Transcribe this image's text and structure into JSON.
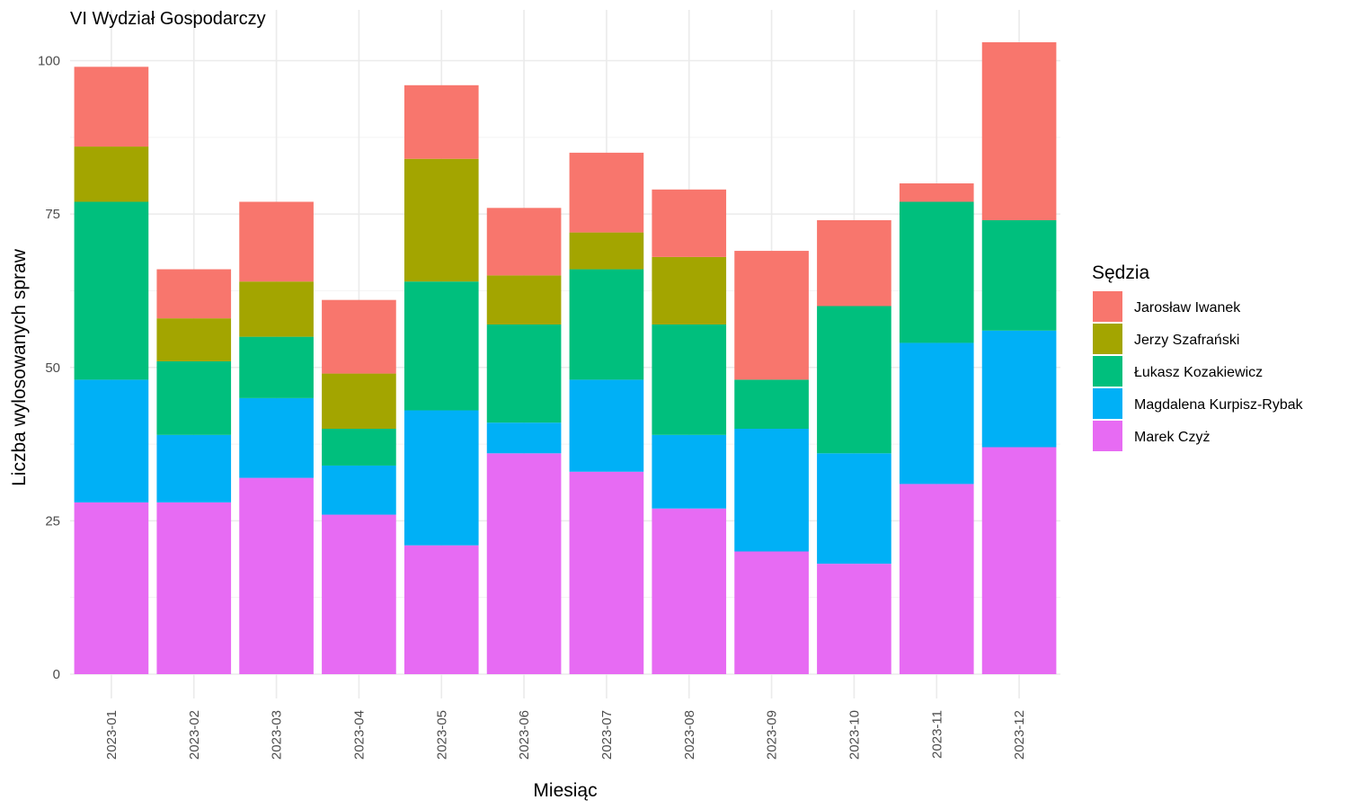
{
  "chart_data": {
    "type": "bar",
    "stacked": true,
    "title": "VI Wydział Gospodarczy",
    "xlabel": "Miesiąc",
    "ylabel": "Liczba wylosowanych spraw",
    "categories": [
      "2023-01",
      "2023-02",
      "2023-03",
      "2023-04",
      "2023-05",
      "2023-06",
      "2023-07",
      "2023-08",
      "2023-09",
      "2023-10",
      "2023-11",
      "2023-12"
    ],
    "ylim": [
      0,
      103
    ],
    "yticks": [
      0,
      25,
      50,
      75,
      100
    ],
    "grid": true,
    "legend": {
      "title": "Sędzia",
      "placement": "right"
    },
    "series": [
      {
        "name": "Marek Czyż",
        "color": "#E76BF3",
        "values": [
          28,
          28,
          32,
          26,
          21,
          36,
          33,
          27,
          20,
          18,
          31,
          37
        ]
      },
      {
        "name": "Magdalena Kurpisz-Rybak",
        "color": "#00B0F6",
        "values": [
          20,
          11,
          13,
          8,
          22,
          5,
          15,
          12,
          20,
          18,
          23,
          19
        ]
      },
      {
        "name": "Łukasz Kozakiewicz",
        "color": "#00BF7D",
        "values": [
          29,
          12,
          10,
          6,
          21,
          16,
          18,
          18,
          8,
          24,
          23,
          18
        ]
      },
      {
        "name": "Jerzy Szafrański",
        "color": "#A3A500",
        "values": [
          9,
          7,
          9,
          9,
          20,
          8,
          6,
          11,
          0,
          0,
          0,
          0
        ]
      },
      {
        "name": "Jarosław Iwanek",
        "color": "#F8766D",
        "values": [
          13,
          8,
          13,
          12,
          12,
          11,
          13,
          11,
          21,
          14,
          3,
          29
        ]
      }
    ],
    "legend_order": [
      "Jarosław Iwanek",
      "Jerzy Szafrański",
      "Łukasz Kozakiewicz",
      "Magdalena Kurpisz-Rybak",
      "Marek Czyż"
    ]
  }
}
